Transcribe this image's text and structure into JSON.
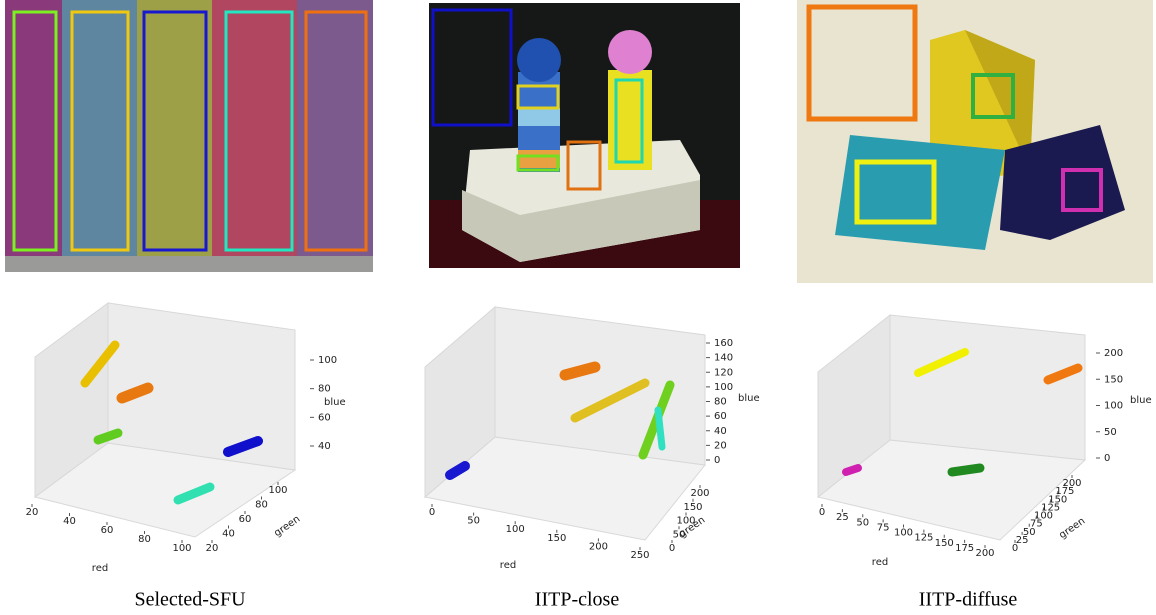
{
  "panels": [
    {
      "caption": "Selected-SFU",
      "plot": {
        "x_label": "red",
        "y_label": "green",
        "z_label": "blue",
        "x_ticks": [
          20,
          40,
          60,
          80,
          100
        ],
        "y_ticks": [
          20,
          40,
          60,
          80,
          100
        ],
        "z_ticks": [
          40,
          60,
          80,
          100
        ]
      }
    },
    {
      "caption": "IITP-close",
      "plot": {
        "x_label": "red",
        "y_label": "green",
        "z_label": "blue",
        "x_ticks": [
          0,
          50,
          100,
          150,
          200,
          250
        ],
        "y_ticks": [
          0,
          50,
          100,
          150,
          200
        ],
        "z_ticks": [
          0,
          20,
          40,
          60,
          80,
          100,
          120,
          140,
          160
        ]
      }
    },
    {
      "caption": "IITP-diffuse",
      "plot": {
        "x_label": "red",
        "y_label": "green",
        "z_label": "blue",
        "x_ticks": [
          0,
          25,
          50,
          75,
          100,
          125,
          150,
          175,
          200
        ],
        "y_ticks": [
          0,
          25,
          50,
          75,
          100,
          125,
          150,
          175,
          200
        ],
        "z_ticks": [
          0,
          50,
          100,
          150,
          200
        ]
      }
    }
  ]
}
